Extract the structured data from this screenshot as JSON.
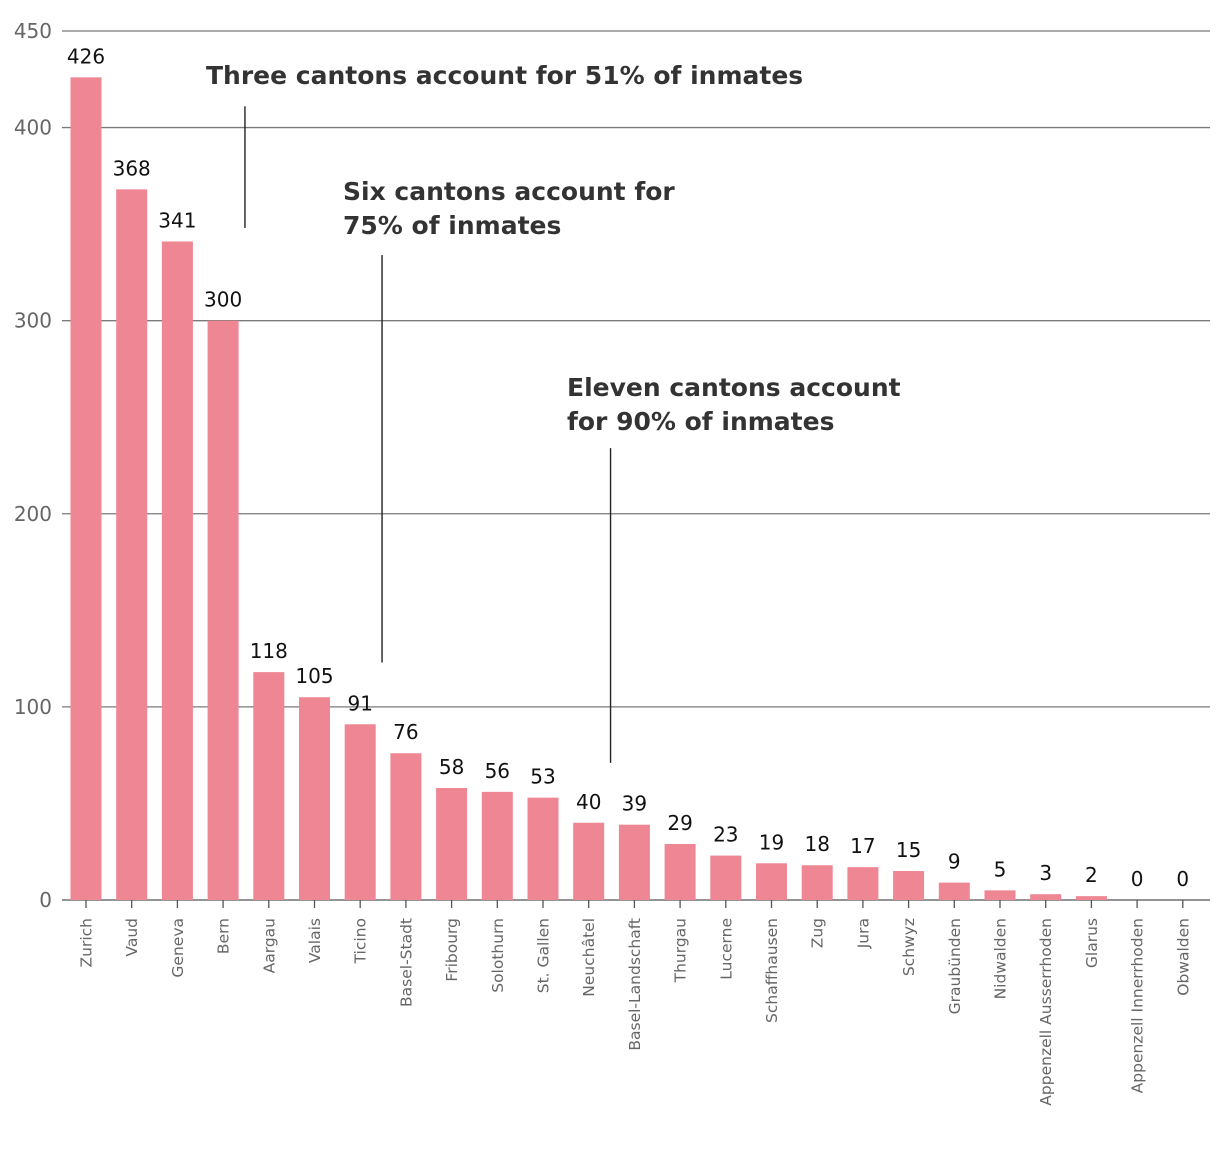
{
  "chart_data": {
    "type": "bar",
    "title": "",
    "xlabel": "",
    "ylabel": "",
    "ylim": [
      0,
      450
    ],
    "yticks": [
      0,
      100,
      200,
      300,
      400,
      450
    ],
    "grid": true,
    "categories": [
      "Zurich",
      "Vaud",
      "Geneva",
      "Bern",
      "Aargau",
      "Valais",
      "Ticino",
      "Basel-Stadt",
      "Fribourg",
      "Solothurn",
      "St. Gallen",
      "Neuchâtel",
      "Basel-Landschaft",
      "Thurgau",
      "Lucerne",
      "Schaffhausen",
      "Zug",
      "Jura",
      "Schwyz",
      "Graubünden",
      "Nidwalden",
      "Appenzell Ausserrhoden",
      "Glarus",
      "Appenzell Innerrhoden",
      "Obwalden"
    ],
    "values": [
      426,
      368,
      341,
      300,
      118,
      105,
      91,
      76,
      58,
      56,
      53,
      40,
      39,
      29,
      23,
      19,
      18,
      17,
      15,
      9,
      5,
      3,
      2,
      0,
      0
    ],
    "bar_color": "#ef8694",
    "annotations": [
      {
        "lines": [
          "Three cantons account for 51% of inmates"
        ],
        "after_category_index": 3,
        "line_top_value": 411,
        "line_bottom_value": 348
      },
      {
        "lines": [
          "Six cantons account for",
          "75% of inmates"
        ],
        "after_category_index": 6,
        "line_top_value": 334,
        "line_bottom_value": 123
      },
      {
        "lines": [
          "Eleven cantons account",
          "for 90% of inmates"
        ],
        "after_category_index": 11,
        "line_top_value": 234,
        "line_bottom_value": 71
      }
    ]
  }
}
